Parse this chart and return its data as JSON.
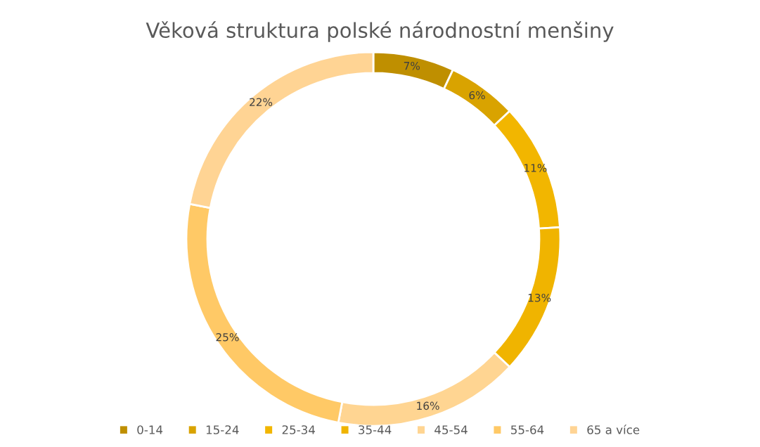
{
  "chart_data": {
    "type": "donut",
    "title": "Věková struktura polské národnostní menšiny",
    "categories": [
      "0-14",
      "15-24",
      "25-34",
      "35-44",
      "45-54",
      "55-64",
      "65 a více"
    ],
    "values": [
      7,
      6,
      11,
      13,
      16,
      25,
      22
    ],
    "value_labels": [
      "7%",
      "6%",
      "11%",
      "13%",
      "16%",
      "25%",
      "22%"
    ],
    "colors": [
      "#bf8f00",
      "#d9a300",
      "#f2b600",
      "#f0b400",
      "#ffd592",
      "#ffc966",
      "#ffd494"
    ],
    "legend": "bottom"
  }
}
